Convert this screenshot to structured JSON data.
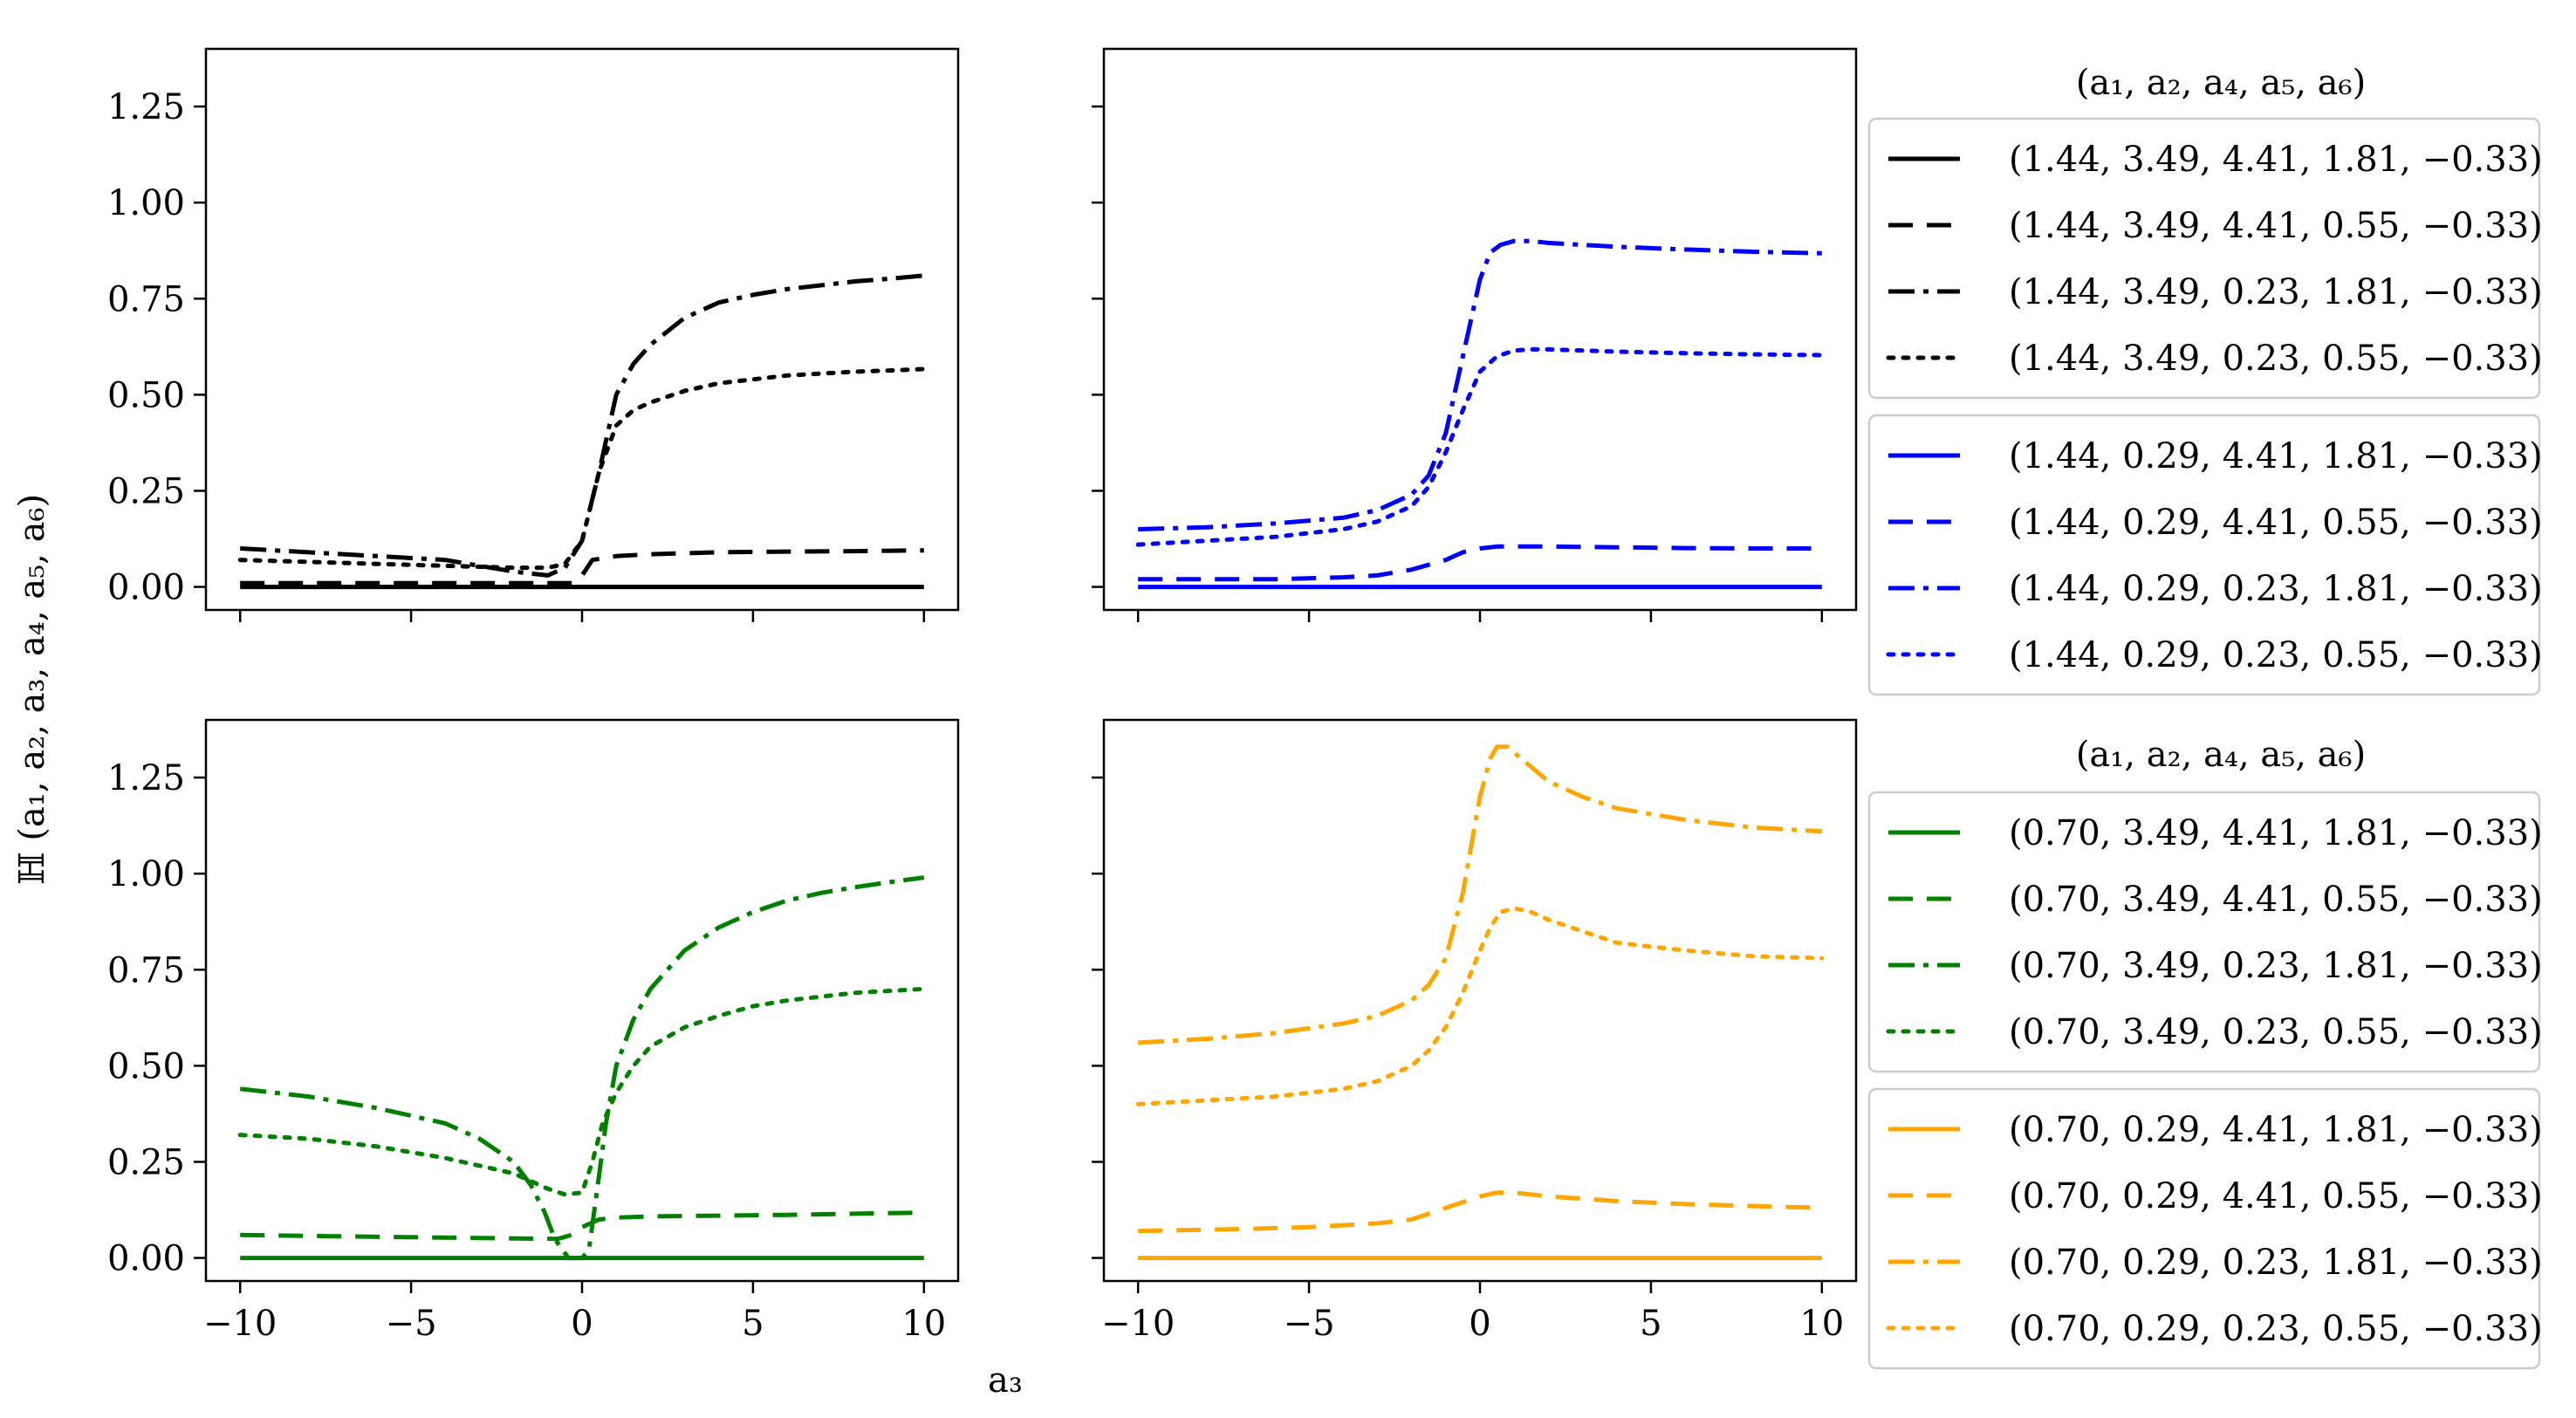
{
  "figure": {
    "ylabel": "ℍ (a₁, a₂, a₃, a₄, a₅, a₆)",
    "xlabel": "a₃",
    "legend_title_top": "(a₁, a₂, a₄, a₅, a₆)",
    "legend_title_bottom": "(a₁, a₂, a₄, a₅, a₆)"
  },
  "styles": {
    "solid": "",
    "dashed": "28 16",
    "dashdot": "30 10 6 10",
    "dotted": "6 11"
  },
  "chart_data": [
    {
      "id": "top-left",
      "type": "line",
      "color": "#000000",
      "xlim": [
        -11,
        11
      ],
      "ylim": [
        -0.06,
        1.4
      ],
      "xticks": [
        -10,
        -5,
        0,
        5,
        10
      ],
      "xticklabels": [
        "",
        "",
        "",
        "",
        ""
      ],
      "yticks": [
        0,
        0.25,
        0.5,
        0.75,
        1.0,
        1.25
      ],
      "yticklabels": [
        "0.00",
        "0.25",
        "0.50",
        "0.75",
        "1.00",
        "1.25"
      ],
      "series": [
        {
          "name": "(1.44, 3.49, 4.41, 1.81, −0.33)",
          "style": "solid",
          "x": [
            -10,
            10
          ],
          "y": [
            0.0,
            0.0
          ]
        },
        {
          "name": "(1.44, 3.49, 4.41, 0.55, −0.33)",
          "style": "dashed",
          "x": [
            -10,
            -6,
            -3,
            -1,
            -0.3,
            0,
            0.3,
            1,
            2,
            4,
            6,
            8,
            10
          ],
          "y": [
            0.01,
            0.01,
            0.01,
            0.01,
            0.01,
            0.03,
            0.07,
            0.08,
            0.085,
            0.09,
            0.092,
            0.093,
            0.095
          ]
        },
        {
          "name": "(1.44, 3.49, 0.23, 1.81, −0.33)",
          "style": "dashdot",
          "x": [
            -10,
            -8,
            -6,
            -4,
            -3,
            -2,
            -1,
            -0.5,
            0,
            0.5,
            1,
            1.5,
            2,
            3,
            4,
            5,
            6,
            7,
            8,
            9,
            10
          ],
          "y": [
            0.1,
            0.09,
            0.08,
            0.07,
            0.055,
            0.04,
            0.03,
            0.05,
            0.12,
            0.3,
            0.5,
            0.58,
            0.63,
            0.7,
            0.74,
            0.76,
            0.775,
            0.785,
            0.795,
            0.802,
            0.81
          ]
        },
        {
          "name": "(1.44, 3.49, 0.23, 0.55, −0.33)",
          "style": "dotted",
          "x": [
            -10,
            -8,
            -6,
            -4,
            -2,
            -1,
            -0.5,
            0,
            0.5,
            1,
            1.5,
            2,
            3,
            4,
            5,
            6,
            7,
            8,
            9,
            10
          ],
          "y": [
            0.07,
            0.065,
            0.06,
            0.055,
            0.05,
            0.05,
            0.06,
            0.12,
            0.3,
            0.42,
            0.46,
            0.48,
            0.51,
            0.53,
            0.54,
            0.55,
            0.555,
            0.56,
            0.563,
            0.567
          ]
        }
      ]
    },
    {
      "id": "top-right",
      "type": "line",
      "color": "#0000ff",
      "xlim": [
        -11,
        11
      ],
      "ylim": [
        -0.06,
        1.4
      ],
      "xticks": [
        -10,
        -5,
        0,
        5,
        10
      ],
      "xticklabels": [
        "",
        "",
        "",
        "",
        ""
      ],
      "yticks": [
        0,
        0.25,
        0.5,
        0.75,
        1.0,
        1.25
      ],
      "yticklabels": [
        "",
        "",
        "",
        "",
        "",
        ""
      ],
      "series": [
        {
          "name": "(1.44, 0.29, 4.41, 1.81, −0.33)",
          "style": "solid",
          "x": [
            -10,
            10
          ],
          "y": [
            0.0,
            0.0
          ]
        },
        {
          "name": "(1.44, 0.29, 4.41, 0.55, −0.33)",
          "style": "dashed",
          "x": [
            -10,
            -6,
            -4,
            -3,
            -2,
            -1,
            -0.5,
            0,
            0.5,
            1,
            2,
            4,
            6,
            8,
            10
          ],
          "y": [
            0.02,
            0.02,
            0.025,
            0.03,
            0.045,
            0.07,
            0.09,
            0.1,
            0.105,
            0.105,
            0.105,
            0.103,
            0.101,
            0.1,
            0.1
          ]
        },
        {
          "name": "(1.44, 0.29, 0.23, 1.81, −0.33)",
          "style": "dashdot",
          "x": [
            -10,
            -8,
            -6,
            -4,
            -3,
            -2,
            -1.5,
            -1,
            -0.5,
            0,
            0.3,
            0.6,
            1,
            1.5,
            2,
            3,
            4,
            6,
            8,
            10
          ],
          "y": [
            0.15,
            0.155,
            0.165,
            0.18,
            0.2,
            0.24,
            0.29,
            0.4,
            0.6,
            0.8,
            0.87,
            0.89,
            0.9,
            0.9,
            0.895,
            0.89,
            0.885,
            0.878,
            0.872,
            0.868
          ]
        },
        {
          "name": "(1.44, 0.29, 0.23, 0.55, −0.33)",
          "style": "dotted",
          "x": [
            -10,
            -8,
            -6,
            -4,
            -3,
            -2,
            -1.5,
            -1,
            -0.5,
            0,
            0.5,
            1,
            1.5,
            2,
            3,
            4,
            6,
            8,
            10
          ],
          "y": [
            0.11,
            0.12,
            0.13,
            0.15,
            0.17,
            0.21,
            0.26,
            0.35,
            0.46,
            0.56,
            0.6,
            0.615,
            0.618,
            0.618,
            0.615,
            0.612,
            0.608,
            0.605,
            0.603
          ]
        }
      ]
    },
    {
      "id": "bottom-left",
      "type": "line",
      "color": "#008000",
      "xlim": [
        -11,
        11
      ],
      "ylim": [
        -0.06,
        1.4
      ],
      "xticks": [
        -10,
        -5,
        0,
        5,
        10
      ],
      "xticklabels": [
        "−10",
        "−5",
        "0",
        "5",
        "10"
      ],
      "yticks": [
        0,
        0.25,
        0.5,
        0.75,
        1.0,
        1.25
      ],
      "yticklabels": [
        "0.00",
        "0.25",
        "0.50",
        "0.75",
        "1.00",
        "1.25"
      ],
      "series": [
        {
          "name": "(0.70, 3.49, 4.41, 1.81, −0.33)",
          "style": "solid",
          "x": [
            -10,
            10
          ],
          "y": [
            0.0,
            0.0
          ]
        },
        {
          "name": "(0.70, 3.49, 4.41, 0.55, −0.33)",
          "style": "dashed",
          "x": [
            -10,
            -6,
            -3,
            -1.2,
            -0.7,
            -0.3,
            0,
            0.5,
            1,
            2,
            4,
            6,
            8,
            10
          ],
          "y": [
            0.06,
            0.055,
            0.052,
            0.05,
            0.05,
            0.06,
            0.08,
            0.1,
            0.105,
            0.108,
            0.11,
            0.112,
            0.115,
            0.118
          ]
        },
        {
          "name": "(0.70, 3.49, 0.23, 1.81, −0.33)",
          "style": "dashdot",
          "x": [
            -10,
            -8,
            -6,
            -4,
            -3,
            -2,
            -1.5,
            -1.1,
            -0.8,
            -0.4,
            0,
            0.2,
            0.4,
            0.7,
            1,
            1.5,
            2,
            3,
            4,
            5,
            6,
            7,
            8,
            9,
            10
          ],
          "y": [
            0.44,
            0.42,
            0.39,
            0.35,
            0.31,
            0.25,
            0.19,
            0.12,
            0.05,
            0.0,
            0.0,
            0.02,
            0.15,
            0.35,
            0.5,
            0.62,
            0.7,
            0.8,
            0.86,
            0.9,
            0.93,
            0.95,
            0.965,
            0.978,
            0.99
          ]
        },
        {
          "name": "(0.70, 3.49, 0.23, 0.55, −0.33)",
          "style": "dotted",
          "x": [
            -10,
            -8,
            -6,
            -4,
            -3,
            -2,
            -1,
            -0.5,
            0,
            0.3,
            0.6,
            1,
            1.5,
            2,
            3,
            4,
            5,
            6,
            7,
            8,
            9,
            10
          ],
          "y": [
            0.32,
            0.31,
            0.29,
            0.26,
            0.24,
            0.22,
            0.18,
            0.165,
            0.17,
            0.25,
            0.35,
            0.43,
            0.5,
            0.55,
            0.6,
            0.63,
            0.655,
            0.67,
            0.68,
            0.69,
            0.695,
            0.7
          ]
        }
      ]
    },
    {
      "id": "bottom-right",
      "type": "line",
      "color": "#ffa500",
      "xlim": [
        -11,
        11
      ],
      "ylim": [
        -0.06,
        1.4
      ],
      "xticks": [
        -10,
        -5,
        0,
        5,
        10
      ],
      "xticklabels": [
        "−10",
        "−5",
        "0",
        "5",
        "10"
      ],
      "yticks": [
        0,
        0.25,
        0.5,
        0.75,
        1.0,
        1.25
      ],
      "yticklabels": [
        "",
        "",
        "",
        "",
        "",
        ""
      ],
      "series": [
        {
          "name": "(0.70, 0.29, 4.41, 1.81, −0.33)",
          "style": "solid",
          "x": [
            -10,
            10
          ],
          "y": [
            0.0,
            0.0
          ]
        },
        {
          "name": "(0.70, 0.29, 4.41, 0.55, −0.33)",
          "style": "dashed",
          "x": [
            -10,
            -7,
            -5,
            -3,
            -2,
            -1,
            0,
            0.5,
            1,
            2,
            4,
            6,
            8,
            10
          ],
          "y": [
            0.07,
            0.075,
            0.08,
            0.09,
            0.1,
            0.13,
            0.16,
            0.17,
            0.17,
            0.16,
            0.148,
            0.14,
            0.135,
            0.13
          ]
        },
        {
          "name": "(0.70, 0.29, 0.23, 1.81, −0.33)",
          "style": "dashdot",
          "x": [
            -10,
            -8,
            -6,
            -4,
            -3,
            -2,
            -1.5,
            -1,
            -0.5,
            0,
            0.3,
            0.5,
            0.8,
            1.2,
            2,
            3,
            4,
            6,
            8,
            10
          ],
          "y": [
            0.56,
            0.57,
            0.585,
            0.61,
            0.63,
            0.67,
            0.71,
            0.78,
            0.95,
            1.2,
            1.3,
            1.33,
            1.33,
            1.3,
            1.24,
            1.2,
            1.17,
            1.14,
            1.12,
            1.11
          ]
        },
        {
          "name": "(0.70, 0.29, 0.23, 0.55, −0.33)",
          "style": "dotted",
          "x": [
            -10,
            -8,
            -6,
            -4,
            -3,
            -2,
            -1.5,
            -1,
            -0.5,
            0,
            0.3,
            0.6,
            1,
            1.5,
            2,
            3,
            4,
            6,
            8,
            10
          ],
          "y": [
            0.4,
            0.41,
            0.42,
            0.44,
            0.46,
            0.5,
            0.54,
            0.6,
            0.69,
            0.8,
            0.86,
            0.9,
            0.91,
            0.9,
            0.88,
            0.85,
            0.82,
            0.8,
            0.785,
            0.78
          ]
        }
      ]
    }
  ]
}
